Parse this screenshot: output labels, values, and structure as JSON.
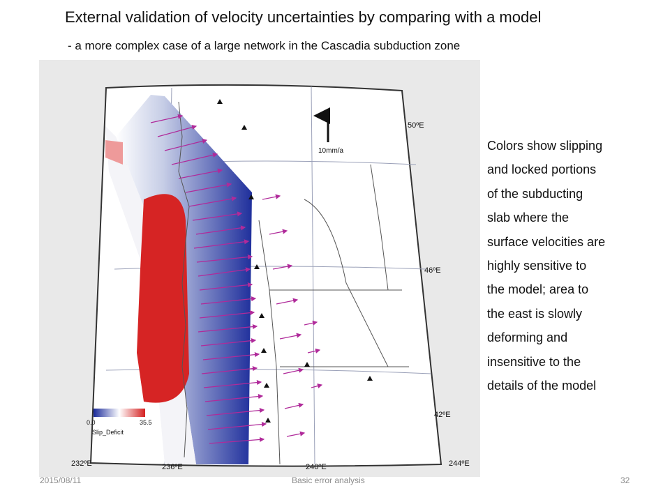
{
  "slide": {
    "title": "External validation of velocity uncertainties by comparing with a model",
    "subtitle": "- a more complex case of a large network in the Cascadia subduction zone",
    "caption_lines": [
      "Colors show slipping",
      "and locked portions",
      "of the subducting",
      "slab where the",
      "surface velocities are",
      "highly sensitive to",
      "the model;  area to",
      "the east is slowly",
      "deforming and",
      "insensitive to the",
      "details of the model"
    ]
  },
  "map": {
    "lat_labels": [
      "50ºE",
      "46ºE",
      "42ºE"
    ],
    "lon_labels": [
      "232ºE",
      "236ºE",
      "240ºE",
      "244ºE"
    ],
    "scale_label": "10mm/a",
    "colorbar": {
      "min_label": "0.0",
      "max_label": "35.5",
      "title": "Slip_Deficit",
      "low_color": "#2233a0",
      "high_color": "#d42020"
    }
  },
  "footer": {
    "date": "2015/08/11",
    "center": "Basic error analysis",
    "page": "32"
  }
}
